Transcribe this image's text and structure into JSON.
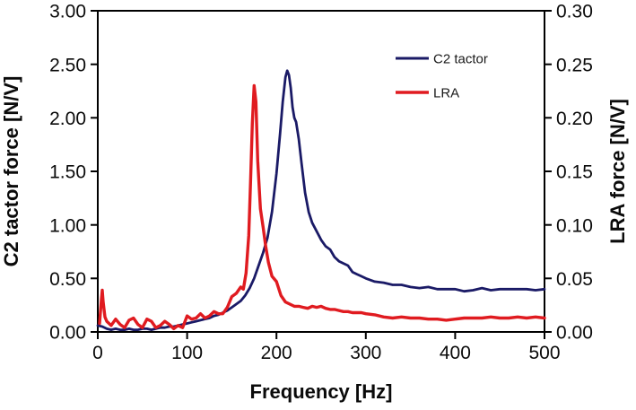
{
  "figure": {
    "background": "#ffffff",
    "axis_color": "#000000"
  },
  "axes": {
    "xlabel": "Frequency [Hz]",
    "ylabel_left": "C2 tactor force [N/V]",
    "ylabel_right": "LRA force [N/V]",
    "xticks": [
      "0",
      "100",
      "200",
      "300",
      "400",
      "500"
    ],
    "yticks_left": [
      "3.00",
      "2.50",
      "2.00",
      "1.50",
      "1.00",
      "0.50",
      "0.00"
    ],
    "yticks_right": [
      "0.30",
      "0.25",
      "0.20",
      "0.15",
      "0.10",
      "0.05",
      "0.00"
    ]
  },
  "legend": {
    "items": [
      {
        "label": "C2 tactor",
        "color": "#1A1A66"
      },
      {
        "label": "LRA",
        "color": "#E01B20"
      }
    ]
  },
  "chart_data": {
    "type": "line",
    "title": "",
    "xlabel": "Frequency [Hz]",
    "ylabel_left": "C2 tactor force [N/V]",
    "ylabel_right": "LRA force [N/V]",
    "xlim": [
      0,
      500
    ],
    "ylim_left": [
      0,
      3.0
    ],
    "ylim_right": [
      0,
      0.3
    ],
    "grid": false,
    "legend_position": "inside upper right",
    "series": [
      {
        "name": "C2 tactor",
        "axis": "left",
        "units": "N/V",
        "color": "#1A1A66",
        "peak": {
          "x": 212,
          "y": 2.44
        },
        "x": [
          0,
          5,
          10,
          15,
          20,
          25,
          30,
          35,
          40,
          45,
          50,
          55,
          60,
          65,
          70,
          75,
          80,
          85,
          90,
          95,
          100,
          105,
          110,
          115,
          120,
          125,
          130,
          135,
          140,
          145,
          150,
          155,
          160,
          165,
          170,
          175,
          180,
          185,
          190,
          195,
          200,
          204,
          207,
          210,
          212,
          214,
          216,
          218,
          220,
          222,
          225,
          228,
          232,
          236,
          240,
          245,
          250,
          255,
          260,
          265,
          270,
          275,
          280,
          285,
          290,
          295,
          300,
          310,
          320,
          330,
          340,
          350,
          360,
          370,
          380,
          390,
          400,
          410,
          420,
          430,
          440,
          450,
          460,
          470,
          480,
          490,
          500
        ],
        "y": [
          0.06,
          0.05,
          0.03,
          0.02,
          0.03,
          0.02,
          0.02,
          0.03,
          0.02,
          0.02,
          0.03,
          0.03,
          0.02,
          0.03,
          0.04,
          0.04,
          0.05,
          0.05,
          0.06,
          0.07,
          0.08,
          0.09,
          0.1,
          0.11,
          0.12,
          0.13,
          0.15,
          0.16,
          0.18,
          0.2,
          0.23,
          0.26,
          0.29,
          0.34,
          0.41,
          0.5,
          0.62,
          0.74,
          0.88,
          1.12,
          1.48,
          1.85,
          2.15,
          2.38,
          2.44,
          2.4,
          2.28,
          2.1,
          2.0,
          1.96,
          1.8,
          1.58,
          1.3,
          1.12,
          1.02,
          0.94,
          0.86,
          0.8,
          0.77,
          0.7,
          0.66,
          0.64,
          0.62,
          0.56,
          0.54,
          0.52,
          0.5,
          0.47,
          0.46,
          0.44,
          0.44,
          0.42,
          0.41,
          0.42,
          0.4,
          0.4,
          0.4,
          0.38,
          0.39,
          0.41,
          0.39,
          0.4,
          0.4,
          0.4,
          0.4,
          0.39,
          0.4
        ]
      },
      {
        "name": "LRA",
        "axis": "right",
        "units": "N/V",
        "color": "#E01B20",
        "peak": {
          "x": 175,
          "y": 0.23
        },
        "x": [
          2,
          4,
          5,
          6,
          8,
          10,
          15,
          20,
          25,
          30,
          35,
          40,
          45,
          50,
          55,
          60,
          65,
          70,
          75,
          80,
          85,
          90,
          95,
          100,
          105,
          110,
          115,
          120,
          125,
          130,
          135,
          140,
          145,
          150,
          155,
          160,
          163,
          166,
          169,
          171,
          173,
          175,
          177,
          179,
          182,
          185,
          188,
          191,
          195,
          200,
          205,
          210,
          215,
          220,
          225,
          230,
          235,
          240,
          245,
          250,
          255,
          260,
          265,
          270,
          275,
          280,
          285,
          290,
          295,
          300,
          310,
          320,
          330,
          340,
          350,
          360,
          370,
          380,
          390,
          400,
          410,
          420,
          430,
          440,
          450,
          460,
          470,
          480,
          490,
          500
        ],
        "y": [
          0.008,
          0.03,
          0.039,
          0.028,
          0.014,
          0.01,
          0.006,
          0.012,
          0.007,
          0.004,
          0.011,
          0.013,
          0.007,
          0.004,
          0.012,
          0.01,
          0.004,
          0.006,
          0.01,
          0.007,
          0.003,
          0.006,
          0.004,
          0.015,
          0.012,
          0.013,
          0.017,
          0.013,
          0.015,
          0.019,
          0.017,
          0.017,
          0.023,
          0.033,
          0.036,
          0.042,
          0.04,
          0.055,
          0.09,
          0.14,
          0.195,
          0.23,
          0.215,
          0.16,
          0.115,
          0.098,
          0.08,
          0.065,
          0.052,
          0.047,
          0.034,
          0.028,
          0.026,
          0.024,
          0.024,
          0.023,
          0.022,
          0.024,
          0.023,
          0.024,
          0.022,
          0.021,
          0.021,
          0.02,
          0.019,
          0.019,
          0.018,
          0.018,
          0.018,
          0.017,
          0.016,
          0.014,
          0.013,
          0.014,
          0.013,
          0.013,
          0.012,
          0.012,
          0.011,
          0.012,
          0.013,
          0.013,
          0.013,
          0.014,
          0.013,
          0.013,
          0.014,
          0.013,
          0.014,
          0.013
        ]
      }
    ]
  }
}
